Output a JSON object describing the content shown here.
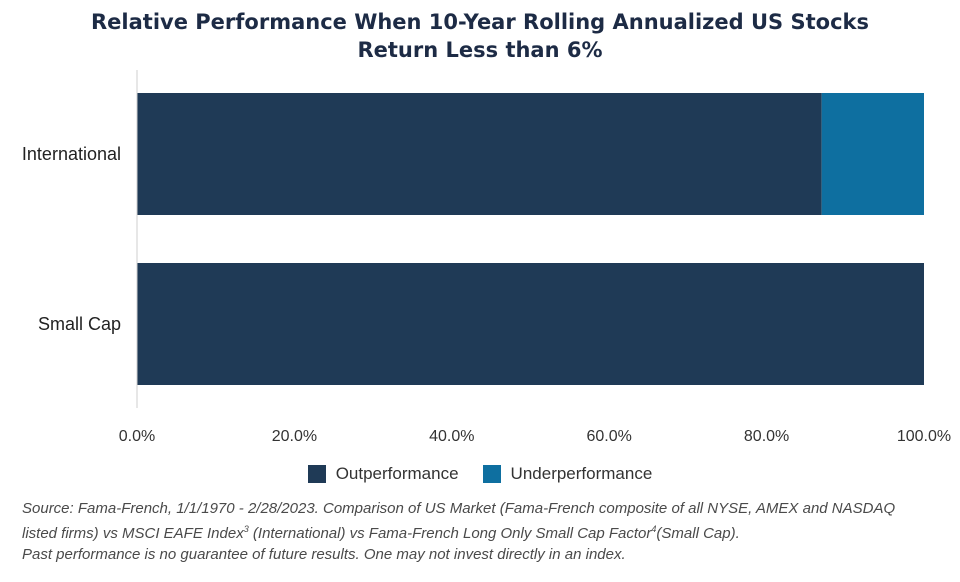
{
  "chart_data": {
    "type": "bar",
    "orientation": "horizontal",
    "stacked": true,
    "title": [
      "Relative Performance When 10-Year Rolling Annualized US Stocks",
      "Return Less than 6%"
    ],
    "categories": [
      "International",
      "Small Cap"
    ],
    "series": [
      {
        "name": "Outperformance",
        "color": "#1f3a56",
        "values": [
          87,
          100
        ]
      },
      {
        "name": "Underperformance",
        "color": "#0e6fa0",
        "values": [
          13,
          0
        ]
      }
    ],
    "xlim": [
      0,
      100
    ],
    "xticks": [
      "0.0%",
      "20.0%",
      "40.0%",
      "60.0%",
      "80.0%",
      "100.0%"
    ],
    "xlabel": "",
    "ylabel": "",
    "grid": false,
    "legend_position": "bottom"
  },
  "footnote": {
    "line1": "Source: Fama-French, 1/1/1970 - 2/28/2023. Comparison of US Market (Fama-French composite of all NYSE, AMEX and NASDAQ",
    "line2a": "listed firms) vs MSCI EAFE Index",
    "line2sup1": "3",
    "line2b": " (International) vs Fama-French Long Only Small Cap Factor",
    "line2sup2": "4",
    "line2c": "(Small Cap).",
    "line3": "Past performance is no guarantee of future results. One may not invest directly in an index."
  }
}
